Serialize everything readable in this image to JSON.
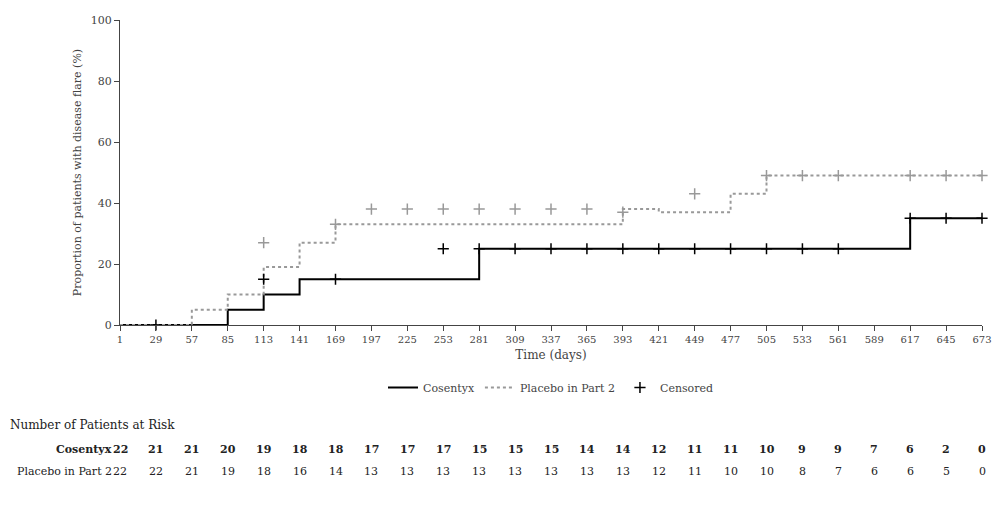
{
  "chart_data": {
    "type": "line",
    "xlabel": "Time (days)",
    "ylabel": "Proportion of patients with disease flare (%)",
    "xlim": [
      1,
      673
    ],
    "ylim": [
      0,
      100
    ],
    "xticks": [
      1,
      29,
      57,
      85,
      113,
      141,
      169,
      197,
      225,
      253,
      281,
      309,
      337,
      365,
      393,
      421,
      449,
      477,
      505,
      533,
      561,
      589,
      617,
      645,
      673
    ],
    "yticks": [
      0,
      20,
      40,
      60,
      80,
      100
    ],
    "grid": false,
    "legend": "bottom",
    "series": [
      {
        "name": "Cosentyx",
        "type": "step",
        "line_style": "solid",
        "color": "#000000",
        "x": [
          1,
          57,
          85,
          113,
          141,
          253,
          281,
          589,
          617,
          645,
          673
        ],
        "values": [
          0,
          0,
          5,
          10,
          15,
          15,
          25,
          25,
          35,
          35,
          35
        ]
      },
      {
        "name": "Placebo in Part 2",
        "type": "step",
        "line_style": "dotted",
        "color": "#999999",
        "x": [
          1,
          29,
          57,
          85,
          113,
          141,
          169,
          393,
          421,
          477,
          505,
          645,
          673
        ],
        "values": [
          0,
          0,
          5,
          10,
          19,
          27,
          33,
          38,
          37,
          43,
          49,
          49,
          49
        ]
      },
      {
        "name": "Censored",
        "type": "scatter",
        "marker": "cross",
        "x": [
          29,
          113,
          169,
          253,
          281,
          309,
          337,
          365,
          393,
          421,
          449,
          477,
          505,
          533,
          561,
          617,
          645,
          673,
          113,
          169,
          197,
          225,
          253,
          281,
          309,
          337,
          365,
          393,
          449,
          505,
          533,
          561,
          617,
          645,
          673
        ],
        "values": [
          0,
          15,
          15,
          25,
          25,
          25,
          25,
          25,
          25,
          25,
          25,
          25,
          25,
          25,
          25,
          35,
          35,
          35,
          27,
          33,
          38,
          38,
          38,
          38,
          38,
          38,
          38,
          37,
          43,
          49,
          49,
          49,
          49,
          49,
          49
        ],
        "colors": [
          "#000000",
          "#000000",
          "#000000",
          "#000000",
          "#000000",
          "#000000",
          "#000000",
          "#000000",
          "#000000",
          "#000000",
          "#000000",
          "#000000",
          "#000000",
          "#000000",
          "#000000",
          "#000000",
          "#000000",
          "#000000",
          "#999999",
          "#999999",
          "#999999",
          "#999999",
          "#999999",
          "#999999",
          "#999999",
          "#999999",
          "#999999",
          "#999999",
          "#999999",
          "#999999",
          "#999999",
          "#999999",
          "#999999",
          "#999999",
          "#999999"
        ]
      }
    ],
    "risk_table": {
      "title": "Number of Patients at Risk",
      "x": [
        1,
        29,
        57,
        85,
        113,
        141,
        169,
        197,
        225,
        253,
        281,
        309,
        337,
        365,
        393,
        421,
        449,
        477,
        505,
        533,
        561,
        589,
        617,
        645,
        673
      ],
      "rows": [
        {
          "name": "Cosentyx",
          "values": [
            22,
            21,
            21,
            20,
            19,
            18,
            18,
            17,
            17,
            17,
            15,
            15,
            15,
            14,
            14,
            12,
            11,
            11,
            10,
            9,
            9,
            7,
            6,
            2,
            0
          ]
        },
        {
          "name": "Placebo in Part 2",
          "values": [
            22,
            22,
            21,
            19,
            18,
            16,
            14,
            13,
            13,
            13,
            13,
            13,
            13,
            13,
            13,
            12,
            11,
            10,
            10,
            8,
            7,
            6,
            6,
            5,
            0
          ]
        }
      ]
    }
  }
}
